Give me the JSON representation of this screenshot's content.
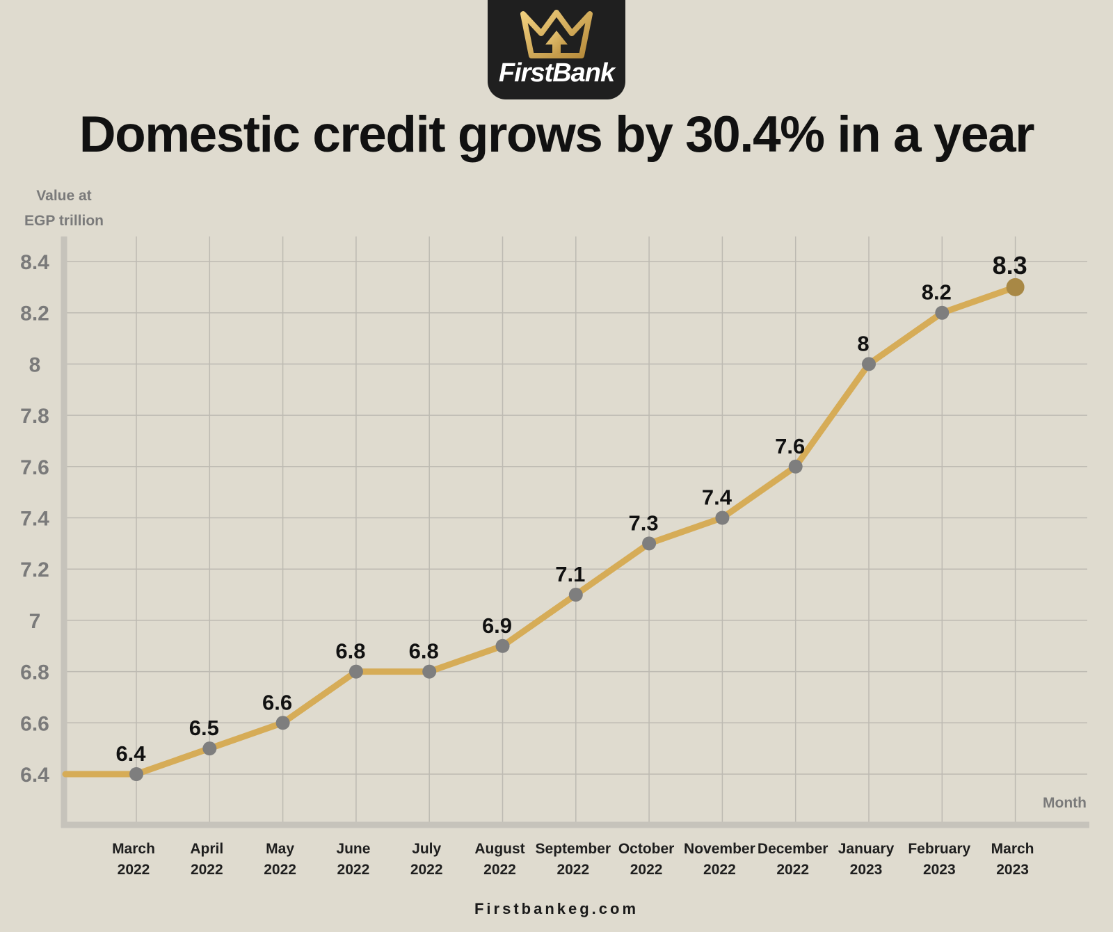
{
  "brand": {
    "name": "FirstBank",
    "accent": "#d6ac57",
    "logo_icon": "crown-arrow-icon"
  },
  "header": {
    "title": "Domestic credit grows by 30.4% in a year"
  },
  "footer": {
    "website": "Firstbankeg.com"
  },
  "chart_data": {
    "type": "line",
    "title": "Domestic credit grows by 30.4% in a year",
    "ylabel_lines": [
      "Value at",
      "EGP trillion"
    ],
    "xlabel": "Month",
    "categories": [
      [
        "March",
        "2022"
      ],
      [
        "April",
        "2022"
      ],
      [
        "May",
        "2022"
      ],
      [
        "June",
        "2022"
      ],
      [
        "July",
        "2022"
      ],
      [
        "August",
        "2022"
      ],
      [
        "September",
        "2022"
      ],
      [
        "October",
        "2022"
      ],
      [
        "November",
        "2022"
      ],
      [
        "December",
        "2022"
      ],
      [
        "January",
        "2023"
      ],
      [
        "February",
        "2023"
      ],
      [
        "March",
        "2023"
      ]
    ],
    "values": [
      6.4,
      6.5,
      6.6,
      6.8,
      6.8,
      6.9,
      7.1,
      7.3,
      7.4,
      7.6,
      8.0,
      8.2,
      8.3
    ],
    "value_labels": [
      "6.4",
      "6.5",
      "6.6",
      "6.8",
      "6.8",
      "6.9",
      "7.1",
      "7.3",
      "7.4",
      "7.6",
      "8",
      "8.2",
      "8.3"
    ],
    "y_ticks": [
      "6.4",
      "6.6",
      "6.8",
      "7",
      "7.2",
      "7.4",
      "7.6",
      "7.8",
      "8",
      "8.2",
      "8.4"
    ],
    "ylim": [
      6.4,
      8.4
    ],
    "grid": true,
    "colors": {
      "line": "#d6ac57",
      "point": "#7e7e7e",
      "last_point": "#a88845",
      "grid": "#bdbab2",
      "axis": "#c6c3bb"
    }
  }
}
